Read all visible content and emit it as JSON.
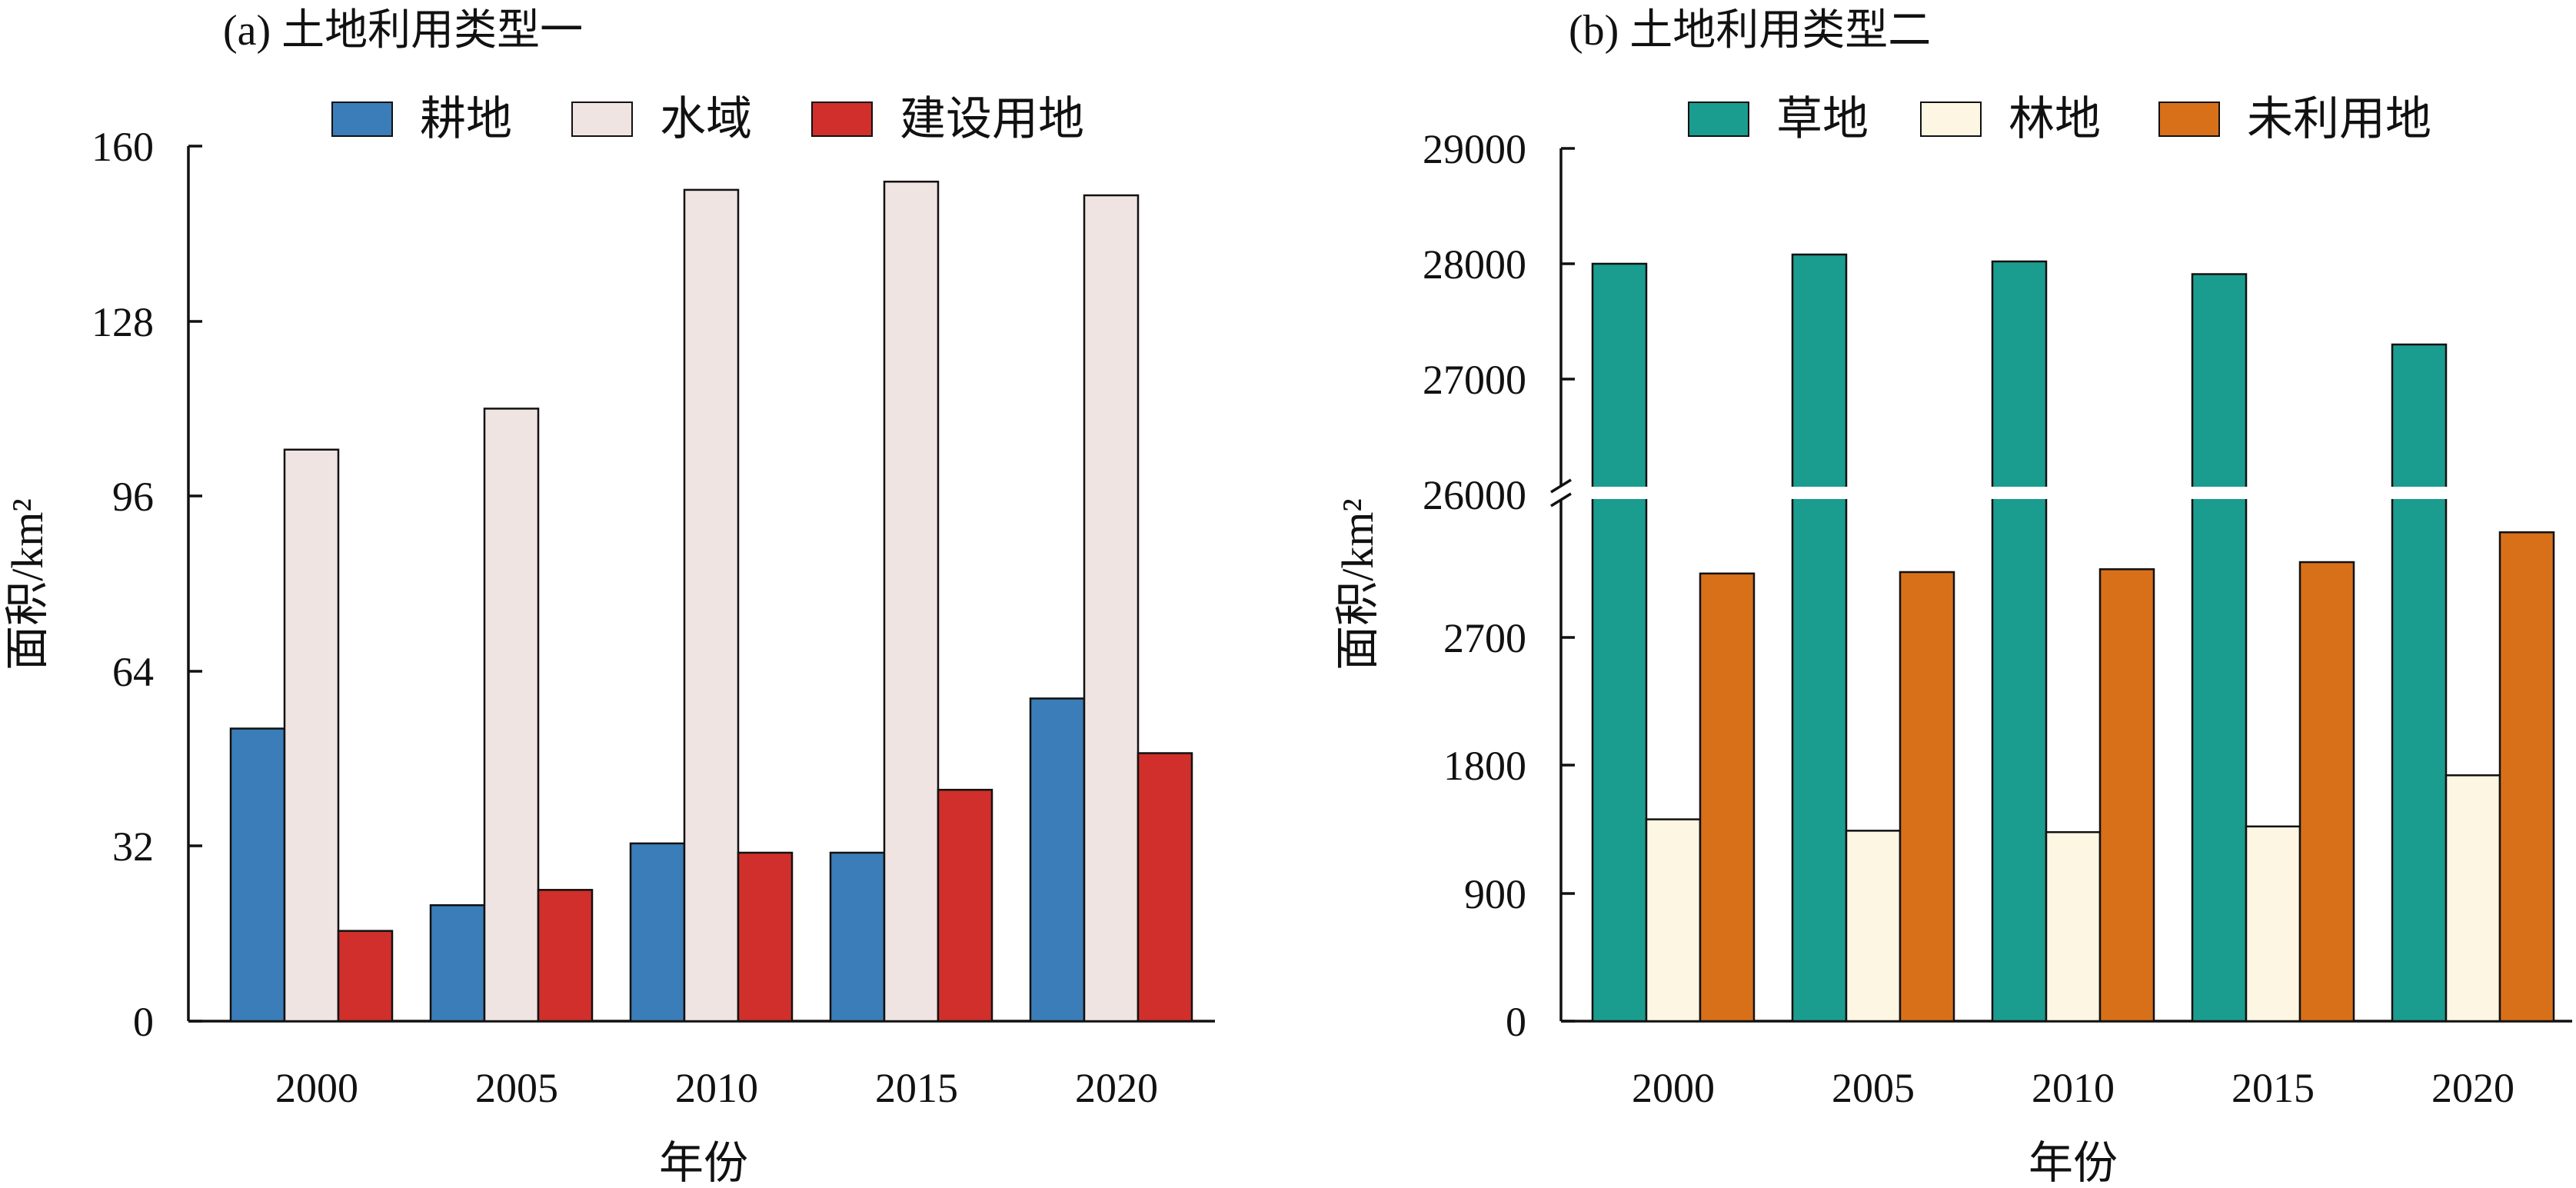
{
  "colors": {
    "耕地": "#3a7db8",
    "水域": "#efe4e1",
    "建设用地": "#d12f2b",
    "草地": "#1a9c8f",
    "林地": "#fdf6e3",
    "未利用地": "#d8701a",
    "axis": "#111111",
    "background": "#ffffff"
  },
  "chart_data": [
    {
      "type": "bar",
      "title": "(a) 土地利用类型一",
      "xlabel": "年份",
      "ylabel": "面积/km²",
      "categories": [
        "2000",
        "2005",
        "2010",
        "2015",
        "2020"
      ],
      "series": [
        {
          "name": "耕地",
          "values": [
            53.5,
            21.2,
            32.5,
            30.8,
            59.0
          ]
        },
        {
          "name": "水域",
          "values": [
            104.5,
            112.0,
            152.0,
            153.5,
            151.0
          ]
        },
        {
          "name": "建设用地",
          "values": [
            16.5,
            24.0,
            30.8,
            42.3,
            49.0
          ]
        }
      ],
      "ylim": [
        0,
        160
      ],
      "yticks": [
        0,
        32,
        64,
        96,
        128,
        160
      ],
      "legend_position": "top"
    },
    {
      "type": "bar",
      "title": "(b) 土地利用类型二",
      "xlabel": "年份",
      "ylabel": "面积/km²",
      "categories": [
        "2000",
        "2005",
        "2010",
        "2015",
        "2020"
      ],
      "series": [
        {
          "name": "草地",
          "values": [
            28000,
            28080,
            28020,
            27910,
            27300
          ]
        },
        {
          "name": "林地",
          "values": [
            1420,
            1340,
            1330,
            1370,
            1730
          ]
        },
        {
          "name": "未利用地",
          "values": [
            3150,
            3160,
            3180,
            3230,
            3440
          ]
        }
      ],
      "y_break": {
        "lower_range": [
          0,
          3700
        ],
        "lower_ticks": [
          0,
          900,
          1800,
          2700
        ],
        "upper_range": [
          26000,
          29000
        ],
        "upper_ticks": [
          26000,
          27000,
          28000,
          29000
        ]
      },
      "legend_position": "top"
    }
  ]
}
